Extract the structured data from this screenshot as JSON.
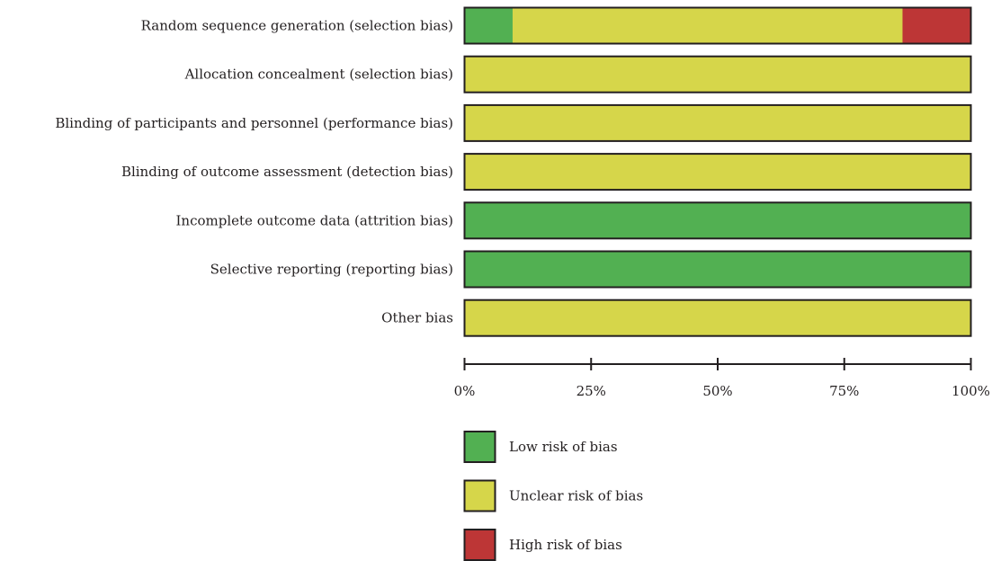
{
  "chart_data": {
    "type": "bar",
    "stacked": true,
    "orientation": "horizontal",
    "value_unit": "percent",
    "categories": [
      "Random sequence generation (selection bias)",
      "Allocation concealment (selection bias)",
      "Blinding of participants and personnel (performance bias)",
      "Blinding of outcome assessment (detection bias)",
      "Incomplete outcome data (attrition bias)",
      "Selective reporting (reporting bias)",
      "Other bias"
    ],
    "series": [
      {
        "name": "Low risk of bias",
        "color": "#52b052",
        "values": [
          9.5,
          0,
          0,
          0,
          100,
          100,
          0
        ]
      },
      {
        "name": "Unclear risk of bias",
        "color": "#d6d64a",
        "values": [
          77,
          100,
          100,
          100,
          0,
          0,
          100
        ]
      },
      {
        "name": "High risk of bias",
        "color": "#bd3636",
        "values": [
          13.5,
          0,
          0,
          0,
          0,
          0,
          0
        ]
      }
    ],
    "x_ticks": [
      0,
      25,
      50,
      75,
      100
    ],
    "x_tick_labels": [
      "0%",
      "25%",
      "50%",
      "75%",
      "100%"
    ],
    "xlim": [
      0,
      100
    ],
    "grid": false,
    "legend_position": "bottom",
    "title": "",
    "xlabel": "",
    "ylabel": ""
  }
}
